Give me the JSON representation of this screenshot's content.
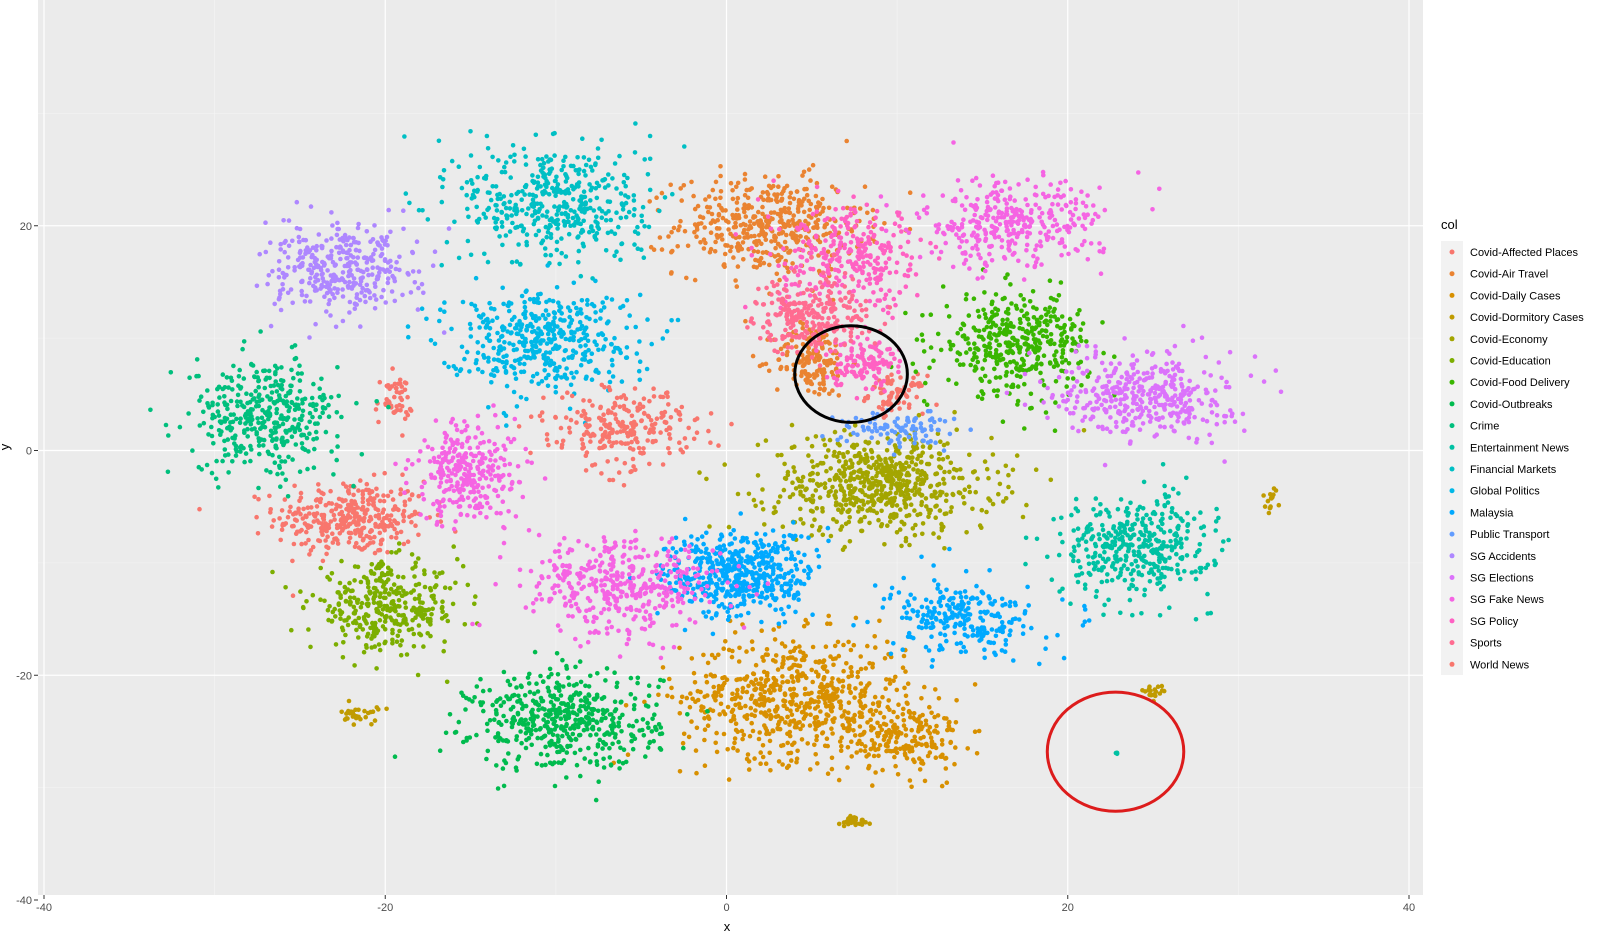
{
  "chart_data": {
    "type": "scatter",
    "xlabel": "x",
    "ylabel": "y",
    "xlim": [
      -40,
      40
    ],
    "ylim": [
      -40,
      40
    ],
    "x_ticks": [
      -40,
      -20,
      0,
      20,
      40
    ],
    "y_ticks": [
      -40,
      -20,
      0,
      20
    ],
    "grid": true,
    "legend_title": "col",
    "legend_position": "right",
    "series": [
      {
        "name": "Covid-Affected Places",
        "color": "#F8766D",
        "clusters": [
          [
            -22,
            -6,
            4,
            3,
            700
          ],
          [
            -19.5,
            4.5,
            1,
            2,
            100
          ],
          [
            10,
            5,
            1.5,
            1.5,
            150
          ]
        ]
      },
      {
        "name": "Covid-Air Travel",
        "color": "#EA8331",
        "clusters": [
          [
            2.5,
            20,
            5,
            4,
            900
          ],
          [
            5,
            8,
            2,
            3,
            300
          ]
        ]
      },
      {
        "name": "Covid-Daily Cases",
        "color": "#D89000",
        "clusters": [
          [
            4,
            -22,
            6,
            5,
            1300
          ],
          [
            10.5,
            -25.5,
            3,
            3,
            400
          ]
        ]
      },
      {
        "name": "Covid-Dormitory Cases",
        "color": "#C09B00",
        "clusters": [
          [
            -21.5,
            -23.5,
            1,
            0.8,
            60
          ],
          [
            7.5,
            -33,
            0.7,
            0.5,
            50
          ],
          [
            25,
            -21.5,
            0.6,
            0.5,
            40
          ],
          [
            32,
            -4.2,
            0.5,
            1,
            30
          ]
        ]
      },
      {
        "name": "Covid-Economy",
        "color": "#A3A500",
        "clusters": [
          [
            9,
            -3,
            6,
            4,
            1300
          ]
        ]
      },
      {
        "name": "Covid-Education",
        "color": "#7CAE00",
        "clusters": [
          [
            -20,
            -14,
            4,
            3.5,
            700
          ]
        ]
      },
      {
        "name": "Covid-Food Delivery",
        "color": "#39B600",
        "clusters": [
          [
            17,
            9.5,
            4,
            4,
            800
          ]
        ]
      },
      {
        "name": "Covid-Outbreaks",
        "color": "#00BB4E",
        "clusters": [
          [
            -9.5,
            -24,
            5,
            4,
            1000
          ]
        ]
      },
      {
        "name": "Crime",
        "color": "#00BF7D",
        "clusters": [
          [
            -27,
            3,
            4,
            4.5,
            800
          ]
        ]
      },
      {
        "name": "Entertainment News",
        "color": "#00C1A3",
        "clusters": [
          [
            24,
            -8.5,
            4,
            4,
            800
          ],
          [
            22.7,
            -26.8,
            0.5,
            0.6,
            6
          ]
        ]
      },
      {
        "name": "Financial Markets",
        "color": "#00BFC4",
        "clusters": [
          [
            -10,
            22,
            5,
            5,
            900
          ]
        ]
      },
      {
        "name": "Global Politics",
        "color": "#00B8E7",
        "clusters": [
          [
            -11,
            10,
            5,
            4,
            900
          ]
        ]
      },
      {
        "name": "Malaysia",
        "color": "#00A9FF",
        "clusters": [
          [
            0.8,
            -11,
            4,
            3.5,
            1000
          ],
          [
            14,
            -15,
            4,
            3,
            500
          ]
        ]
      },
      {
        "name": "Public Transport",
        "color": "#619CFF",
        "clusters": [
          [
            10,
            2,
            3,
            1.5,
            200
          ]
        ]
      },
      {
        "name": "SG Accidents",
        "color": "#AE87FF",
        "clusters": [
          [
            -22.5,
            16,
            4,
            3.5,
            700
          ]
        ]
      },
      {
        "name": "SG Elections",
        "color": "#DB72FB",
        "clusters": [
          [
            24.5,
            5,
            4.5,
            3.5,
            800
          ]
        ]
      },
      {
        "name": "SG Fake News",
        "color": "#F564E3",
        "clusters": [
          [
            -15,
            -2,
            3,
            4,
            600
          ],
          [
            -6,
            -12,
            5,
            4,
            800
          ],
          [
            16.5,
            20,
            5,
            3.5,
            700
          ]
        ]
      },
      {
        "name": "SG Policy",
        "color": "#FF61C3",
        "clusters": [
          [
            7.5,
            17,
            4,
            4,
            600
          ],
          [
            8,
            8,
            2,
            2,
            250
          ]
        ]
      },
      {
        "name": "Sports",
        "color": "#FF6C91",
        "clusters": [
          [
            5,
            12,
            3,
            3,
            500
          ]
        ]
      },
      {
        "name": "World News",
        "color": "#F8766D",
        "clusters": [
          [
            -6,
            2,
            4,
            3,
            500
          ]
        ]
      }
    ],
    "annotations": [
      {
        "shape": "ellipse",
        "color": "#000000",
        "cx": 7.3,
        "cy": 6.8,
        "rx": 3.3,
        "ry": 4.3
      },
      {
        "shape": "ellipse",
        "color": "#DD1C1C",
        "cx": 22.8,
        "cy": -26.8,
        "rx": 4,
        "ry": 5.3
      }
    ]
  }
}
